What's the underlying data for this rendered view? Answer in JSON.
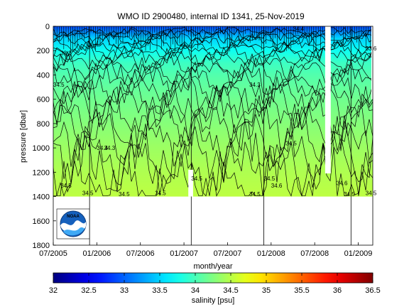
{
  "chart_data": {
    "type": "heatmap",
    "title": "WMO ID 2900480, internal ID 1341, 25-Nov-2019",
    "xlabel": "month/year",
    "ylabel": "pressure [dbar]",
    "x_ticks": [
      "07/2005",
      "01/2006",
      "07/2006",
      "01/2007",
      "07/2007",
      "01/2008",
      "07/2008",
      "01/2009"
    ],
    "x_range": [
      "2005-07",
      "2009-03"
    ],
    "y_ticks": [
      0,
      200,
      400,
      600,
      800,
      1000,
      1200,
      1400,
      1600,
      1800
    ],
    "ylim": [
      0,
      1800
    ],
    "y_reversed": true,
    "colorbar": {
      "label": "salinity [psu]",
      "ticks": [
        32,
        32.5,
        33,
        33.5,
        34,
        34.5,
        35,
        35.5,
        36,
        36.5
      ],
      "range": [
        32,
        36.5
      ],
      "colormap": "jet"
    },
    "salinity_field": {
      "pressure": [
        0,
        50,
        100,
        200,
        300,
        400,
        500,
        600,
        800,
        1000,
        1200,
        1400
      ],
      "salinity": [
        32.9,
        33.2,
        33.5,
        33.75,
        33.95,
        34.05,
        34.12,
        34.18,
        34.28,
        34.38,
        34.46,
        34.52
      ],
      "max_pressure": 1400
    },
    "contour_labels": [
      {
        "text": "34.5",
        "date": "2005-08",
        "pressure": 1310
      },
      {
        "text": "34.5",
        "date": "2005-11",
        "pressure": 1370
      },
      {
        "text": "34.4",
        "date": "2006-01",
        "pressure": 1000
      },
      {
        "text": "34.3",
        "date": "2006-02",
        "pressure": 1000
      },
      {
        "text": "34.5",
        "date": "2006-04",
        "pressure": 1380
      },
      {
        "text": "34.5",
        "date": "2006-09",
        "pressure": 1370
      },
      {
        "text": "34.5",
        "date": "2007-02",
        "pressure": 1250
      },
      {
        "text": "34.3",
        "date": "2007-10",
        "pressure": 480
      },
      {
        "text": "34.5",
        "date": "2007-10",
        "pressure": 1380
      },
      {
        "text": "34.5",
        "date": "2008-03",
        "pressure": 960
      },
      {
        "text": "34.6",
        "date": "2008-01",
        "pressure": 1310
      },
      {
        "text": "34.5",
        "date": "2007-12",
        "pressure": 1250
      },
      {
        "text": "34.4",
        "date": "2008-04",
        "pressure": 20
      },
      {
        "text": "34.6",
        "date": "2008-10",
        "pressure": 1290
      },
      {
        "text": "34.5",
        "date": "2008-11",
        "pressure": 1380
      },
      {
        "text": "33.6",
        "date": "2009-02",
        "pressure": 180
      },
      {
        "text": "34.5",
        "date": "2009-02",
        "pressure": 1370
      },
      {
        "text": "33.3",
        "date": "2005-08",
        "pressure": 220
      },
      {
        "text": "34.5",
        "date": "2005-07",
        "pressure": 480
      }
    ],
    "grid": false,
    "legend": "none"
  },
  "logo": {
    "text": "NOAA"
  }
}
